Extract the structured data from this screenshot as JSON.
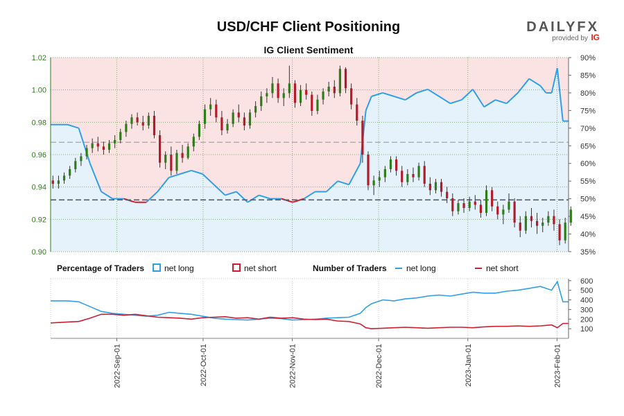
{
  "chart_data": {
    "type": "line",
    "title": "USD/CHF Client Positioning",
    "subtitle": "IG Client Sentiment",
    "brand": {
      "name": "DAILYFX",
      "provided_by": "provided by",
      "provider": "IG"
    },
    "price_axis": {
      "ylim": [
        0.9,
        1.02
      ],
      "ticks": [
        "0.90",
        "0.92",
        "0.94",
        "0.96",
        "0.98",
        "1.00",
        "1.02"
      ]
    },
    "sentiment_axis": {
      "ylim": [
        35,
        90
      ],
      "ticks": [
        "35%",
        "40%",
        "45%",
        "50%",
        "55%",
        "60%",
        "65%",
        "70%",
        "75%",
        "80%",
        "85%",
        "90%"
      ]
    },
    "count_axis": {
      "ylim": [
        0,
        620
      ],
      "ticks": [
        "100",
        "200",
        "300",
        "400",
        "500",
        "600"
      ]
    },
    "x_ticks": [
      "2022-Sep-01",
      "2022-Oct-01",
      "2022-Nov-01",
      "2022-Dec-01",
      "2023-Jan-01",
      "2023-Feb-01"
    ],
    "x_tick_days": [
      23,
      53,
      84,
      114,
      145,
      176
    ],
    "x_range_days": [
      0,
      180
    ],
    "reference_lines": {
      "price_level": 0.932,
      "sentiment_level": 66
    },
    "legend": {
      "pct_title": "Percentage of Traders",
      "num_title": "Number of Traders",
      "net_long": "net long",
      "net_short": "net short"
    },
    "colors": {
      "long": "#2f9fe8",
      "short": "#cc1f30",
      "long_fill": "#e5f2fb",
      "short_fill": "#fbe3e3",
      "up": "#2e7d1a",
      "down": "#b31b2a",
      "axis_green": "#2e7d1a"
    },
    "price_ohlc": [
      [
        0,
        0.944,
        0.947,
        0.939,
        0.942
      ],
      [
        1,
        0.942,
        0.947,
        0.939,
        0.944
      ],
      [
        2,
        0.944,
        0.949,
        0.942,
        0.947
      ],
      [
        3,
        0.947,
        0.953,
        0.945,
        0.951
      ],
      [
        4,
        0.951,
        0.958,
        0.949,
        0.956
      ],
      [
        5,
        0.956,
        0.961,
        0.953,
        0.959
      ],
      [
        6,
        0.959,
        0.966,
        0.957,
        0.964
      ],
      [
        7,
        0.964,
        0.97,
        0.961,
        0.967
      ],
      [
        8,
        0.967,
        0.971,
        0.962,
        0.965
      ],
      [
        9,
        0.965,
        0.968,
        0.96,
        0.963
      ],
      [
        10,
        0.963,
        0.969,
        0.961,
        0.967
      ],
      [
        11,
        0.967,
        0.972,
        0.964,
        0.969
      ],
      [
        12,
        0.969,
        0.976,
        0.967,
        0.974
      ],
      [
        13,
        0.974,
        0.981,
        0.971,
        0.979
      ],
      [
        14,
        0.979,
        0.985,
        0.976,
        0.983
      ],
      [
        15,
        0.983,
        0.986,
        0.978,
        0.98
      ],
      [
        16,
        0.98,
        0.984,
        0.975,
        0.978
      ],
      [
        17,
        0.978,
        0.986,
        0.976,
        0.984
      ],
      [
        18,
        0.984,
        0.987,
        0.97,
        0.972
      ],
      [
        19,
        0.972,
        0.975,
        0.952,
        0.955
      ],
      [
        20,
        0.955,
        0.962,
        0.951,
        0.96
      ],
      [
        21,
        0.96,
        0.965,
        0.947,
        0.95
      ],
      [
        22,
        0.95,
        0.963,
        0.948,
        0.961
      ],
      [
        23,
        0.961,
        0.966,
        0.955,
        0.958
      ],
      [
        24,
        0.958,
        0.967,
        0.957,
        0.965
      ],
      [
        25,
        0.965,
        0.973,
        0.962,
        0.971
      ],
      [
        26,
        0.971,
        0.981,
        0.969,
        0.979
      ],
      [
        27,
        0.979,
        0.991,
        0.976,
        0.988
      ],
      [
        28,
        0.988,
        0.995,
        0.984,
        0.991
      ],
      [
        29,
        0.991,
        0.994,
        0.98,
        0.983
      ],
      [
        30,
        0.983,
        0.987,
        0.972,
        0.975
      ],
      [
        31,
        0.975,
        0.982,
        0.973,
        0.979
      ],
      [
        32,
        0.979,
        0.988,
        0.977,
        0.986
      ],
      [
        33,
        0.986,
        0.991,
        0.98,
        0.983
      ],
      [
        34,
        0.983,
        0.986,
        0.975,
        0.978
      ],
      [
        35,
        0.978,
        0.988,
        0.976,
        0.986
      ],
      [
        36,
        0.986,
        0.993,
        0.983,
        0.99
      ],
      [
        37,
        0.99,
        0.999,
        0.987,
        0.996
      ],
      [
        38,
        0.996,
        1.001,
        0.992,
        0.998
      ],
      [
        39,
        0.998,
        1.008,
        0.995,
        1.004
      ],
      [
        40,
        1.004,
        1.007,
        0.992,
        0.995
      ],
      [
        41,
        0.995,
        1.001,
        0.99,
        0.998
      ],
      [
        42,
        0.998,
        1.015,
        0.995,
        1.004
      ],
      [
        43,
        1.004,
        1.006,
        0.989,
        0.992
      ],
      [
        44,
        0.992,
        1.003,
        0.99,
        1.0
      ],
      [
        45,
        1.0,
        1.004,
        0.994,
        0.997
      ],
      [
        46,
        0.997,
        0.999,
        0.984,
        0.987
      ],
      [
        47,
        0.987,
        0.997,
        0.985,
        0.994
      ],
      [
        48,
        0.994,
        1.001,
        0.991,
        0.999
      ],
      [
        49,
        0.999,
        1.005,
        0.996,
        1.002
      ],
      [
        50,
        1.002,
        1.006,
        0.995,
        0.998
      ],
      [
        51,
        0.998,
        1.015,
        0.996,
        1.013
      ],
      [
        52,
        1.013,
        1.014,
        0.998,
        1.001
      ],
      [
        53,
        1.001,
        1.004,
        0.988,
        0.991
      ],
      [
        54,
        0.991,
        0.995,
        0.978,
        0.981
      ],
      [
        55,
        0.981,
        0.984,
        0.955,
        0.96
      ],
      [
        56,
        0.96,
        0.962,
        0.938,
        0.941
      ],
      [
        57,
        0.941,
        0.947,
        0.935,
        0.944
      ],
      [
        58,
        0.944,
        0.95,
        0.94,
        0.946
      ],
      [
        59,
        0.946,
        0.953,
        0.943,
        0.951
      ],
      [
        60,
        0.951,
        0.959,
        0.949,
        0.957
      ],
      [
        61,
        0.957,
        0.959,
        0.947,
        0.95
      ],
      [
        62,
        0.95,
        0.953,
        0.94,
        0.943
      ],
      [
        63,
        0.943,
        0.951,
        0.941,
        0.948
      ],
      [
        64,
        0.948,
        0.952,
        0.943,
        0.946
      ],
      [
        65,
        0.946,
        0.955,
        0.944,
        0.953
      ],
      [
        66,
        0.953,
        0.956,
        0.94,
        0.942
      ],
      [
        67,
        0.942,
        0.946,
        0.935,
        0.938
      ],
      [
        68,
        0.938,
        0.945,
        0.936,
        0.943
      ],
      [
        69,
        0.943,
        0.945,
        0.934,
        0.937
      ],
      [
        70,
        0.937,
        0.94,
        0.93,
        0.933
      ],
      [
        71,
        0.933,
        0.936,
        0.922,
        0.925
      ],
      [
        72,
        0.925,
        0.932,
        0.923,
        0.93
      ],
      [
        73,
        0.93,
        0.933,
        0.924,
        0.927
      ],
      [
        74,
        0.927,
        0.934,
        0.925,
        0.931
      ],
      [
        75,
        0.931,
        0.935,
        0.926,
        0.929
      ],
      [
        76,
        0.929,
        0.932,
        0.921,
        0.924
      ],
      [
        77,
        0.924,
        0.941,
        0.922,
        0.938
      ],
      [
        78,
        0.938,
        0.94,
        0.925,
        0.928
      ],
      [
        79,
        0.928,
        0.931,
        0.92,
        0.923
      ],
      [
        80,
        0.923,
        0.929,
        0.917,
        0.926
      ],
      [
        81,
        0.926,
        0.936,
        0.924,
        0.931
      ],
      [
        82,
        0.931,
        0.933,
        0.915,
        0.918
      ],
      [
        83,
        0.918,
        0.922,
        0.909,
        0.913
      ],
      [
        84,
        0.913,
        0.925,
        0.911,
        0.922
      ],
      [
        85,
        0.922,
        0.927,
        0.915,
        0.919
      ],
      [
        86,
        0.919,
        0.924,
        0.911,
        0.916
      ],
      [
        87,
        0.916,
        0.921,
        0.912,
        0.918
      ],
      [
        88,
        0.918,
        0.925,
        0.916,
        0.922
      ],
      [
        89,
        0.922,
        0.926,
        0.913,
        0.917
      ],
      [
        90,
        0.917,
        0.92,
        0.904,
        0.907
      ],
      [
        91,
        0.907,
        0.921,
        0.905,
        0.918
      ],
      [
        92,
        0.918,
        0.928,
        0.916,
        0.926
      ]
    ],
    "sentiment_pct_long": [
      [
        0,
        71
      ],
      [
        3,
        71
      ],
      [
        5,
        70
      ],
      [
        7,
        60
      ],
      [
        9,
        52
      ],
      [
        11,
        50
      ],
      [
        13,
        50
      ],
      [
        15,
        49
      ],
      [
        17,
        49
      ],
      [
        19,
        52
      ],
      [
        21,
        56
      ],
      [
        23,
        57
      ],
      [
        25,
        58
      ],
      [
        27,
        57
      ],
      [
        29,
        54
      ],
      [
        31,
        51
      ],
      [
        33,
        52
      ],
      [
        35,
        49
      ],
      [
        37,
        51
      ],
      [
        39,
        50
      ],
      [
        41,
        50
      ],
      [
        43,
        49
      ],
      [
        45,
        50
      ],
      [
        47,
        52
      ],
      [
        49,
        52
      ],
      [
        51,
        55
      ],
      [
        53,
        54
      ],
      [
        55,
        60
      ],
      [
        56,
        75
      ],
      [
        57,
        79
      ],
      [
        59,
        80
      ],
      [
        61,
        79
      ],
      [
        63,
        78
      ],
      [
        65,
        80
      ],
      [
        67,
        81
      ],
      [
        69,
        79
      ],
      [
        71,
        77
      ],
      [
        73,
        78
      ],
      [
        75,
        81
      ],
      [
        77,
        76
      ],
      [
        79,
        78
      ],
      [
        81,
        77
      ],
      [
        83,
        80
      ],
      [
        85,
        84
      ],
      [
        87,
        82
      ],
      [
        88,
        80
      ],
      [
        89,
        80
      ],
      [
        90,
        87
      ],
      [
        91,
        72
      ],
      [
        92,
        72
      ]
    ],
    "count_long": [
      [
        0,
        390
      ],
      [
        3,
        390
      ],
      [
        5,
        380
      ],
      [
        7,
        330
      ],
      [
        9,
        280
      ],
      [
        11,
        260
      ],
      [
        13,
        250
      ],
      [
        15,
        240
      ],
      [
        17,
        230
      ],
      [
        19,
        240
      ],
      [
        21,
        270
      ],
      [
        23,
        260
      ],
      [
        25,
        250
      ],
      [
        27,
        230
      ],
      [
        29,
        210
      ],
      [
        31,
        200
      ],
      [
        33,
        195
      ],
      [
        35,
        190
      ],
      [
        37,
        200
      ],
      [
        39,
        210
      ],
      [
        41,
        205
      ],
      [
        43,
        190
      ],
      [
        45,
        195
      ],
      [
        47,
        200
      ],
      [
        49,
        210
      ],
      [
        51,
        215
      ],
      [
        53,
        220
      ],
      [
        55,
        260
      ],
      [
        56,
        320
      ],
      [
        57,
        360
      ],
      [
        59,
        400
      ],
      [
        61,
        390
      ],
      [
        63,
        410
      ],
      [
        65,
        420
      ],
      [
        67,
        440
      ],
      [
        69,
        450
      ],
      [
        71,
        440
      ],
      [
        73,
        460
      ],
      [
        75,
        480
      ],
      [
        77,
        470
      ],
      [
        79,
        470
      ],
      [
        81,
        490
      ],
      [
        83,
        500
      ],
      [
        85,
        520
      ],
      [
        87,
        540
      ],
      [
        88,
        520
      ],
      [
        89,
        500
      ],
      [
        90,
        590
      ],
      [
        91,
        380
      ],
      [
        92,
        380
      ]
    ],
    "count_short": [
      [
        0,
        160
      ],
      [
        3,
        170
      ],
      [
        5,
        175
      ],
      [
        7,
        210
      ],
      [
        9,
        250
      ],
      [
        11,
        250
      ],
      [
        13,
        240
      ],
      [
        15,
        250
      ],
      [
        17,
        235
      ],
      [
        19,
        220
      ],
      [
        21,
        215
      ],
      [
        23,
        210
      ],
      [
        25,
        200
      ],
      [
        27,
        215
      ],
      [
        29,
        220
      ],
      [
        31,
        225
      ],
      [
        33,
        210
      ],
      [
        35,
        215
      ],
      [
        37,
        200
      ],
      [
        39,
        220
      ],
      [
        41,
        210
      ],
      [
        43,
        215
      ],
      [
        45,
        200
      ],
      [
        47,
        195
      ],
      [
        49,
        200
      ],
      [
        51,
        180
      ],
      [
        53,
        175
      ],
      [
        55,
        150
      ],
      [
        56,
        110
      ],
      [
        57,
        100
      ],
      [
        59,
        105
      ],
      [
        61,
        110
      ],
      [
        63,
        115
      ],
      [
        65,
        110
      ],
      [
        67,
        105
      ],
      [
        69,
        110
      ],
      [
        71,
        115
      ],
      [
        73,
        115
      ],
      [
        75,
        110
      ],
      [
        77,
        120
      ],
      [
        79,
        125
      ],
      [
        81,
        125
      ],
      [
        83,
        130
      ],
      [
        85,
        125
      ],
      [
        87,
        130
      ],
      [
        88,
        135
      ],
      [
        89,
        140
      ],
      [
        90,
        110
      ],
      [
        91,
        155
      ],
      [
        92,
        155
      ]
    ]
  }
}
